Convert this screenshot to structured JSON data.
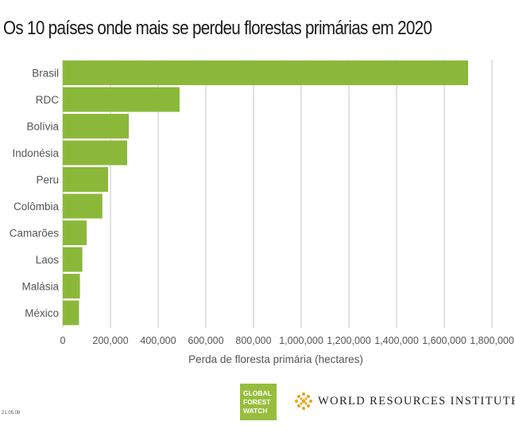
{
  "chart_data": {
    "type": "bar",
    "orientation": "horizontal",
    "title": "Os 10 países onde mais se perdeu florestas primárias em 2020",
    "categories": [
      "Brasil",
      "RDC",
      "Bolívia",
      "Indonésia",
      "Peru",
      "Colômbia",
      "Camarões",
      "Laos",
      "Malásia",
      "México"
    ],
    "values": [
      1700000,
      490000,
      277000,
      270000,
      190000,
      166000,
      100000,
      82000,
      72000,
      68000
    ],
    "xlabel": "Perda de floresta primária (hectares)",
    "ylabel": "",
    "xlim": [
      0,
      1800000
    ],
    "xticks": [
      0,
      200000,
      400000,
      600000,
      800000,
      1000000,
      1200000,
      1400000,
      1600000,
      1800000
    ],
    "xtick_labels": [
      "0",
      "200,000",
      "400,000",
      "600,000",
      "800,000",
      "1,000,000",
      "1,200,000",
      "1,400,000",
      "1,600,000",
      "1,800,000"
    ],
    "grid": "vertical",
    "bar_color": "#8cb83a"
  },
  "logos": {
    "gfw_lines": [
      "GLOBAL",
      "FOREST",
      "WATCH"
    ],
    "wri_name": "WORLD RESOURCES INSTITUTE"
  },
  "footer_date": "21.05.08"
}
